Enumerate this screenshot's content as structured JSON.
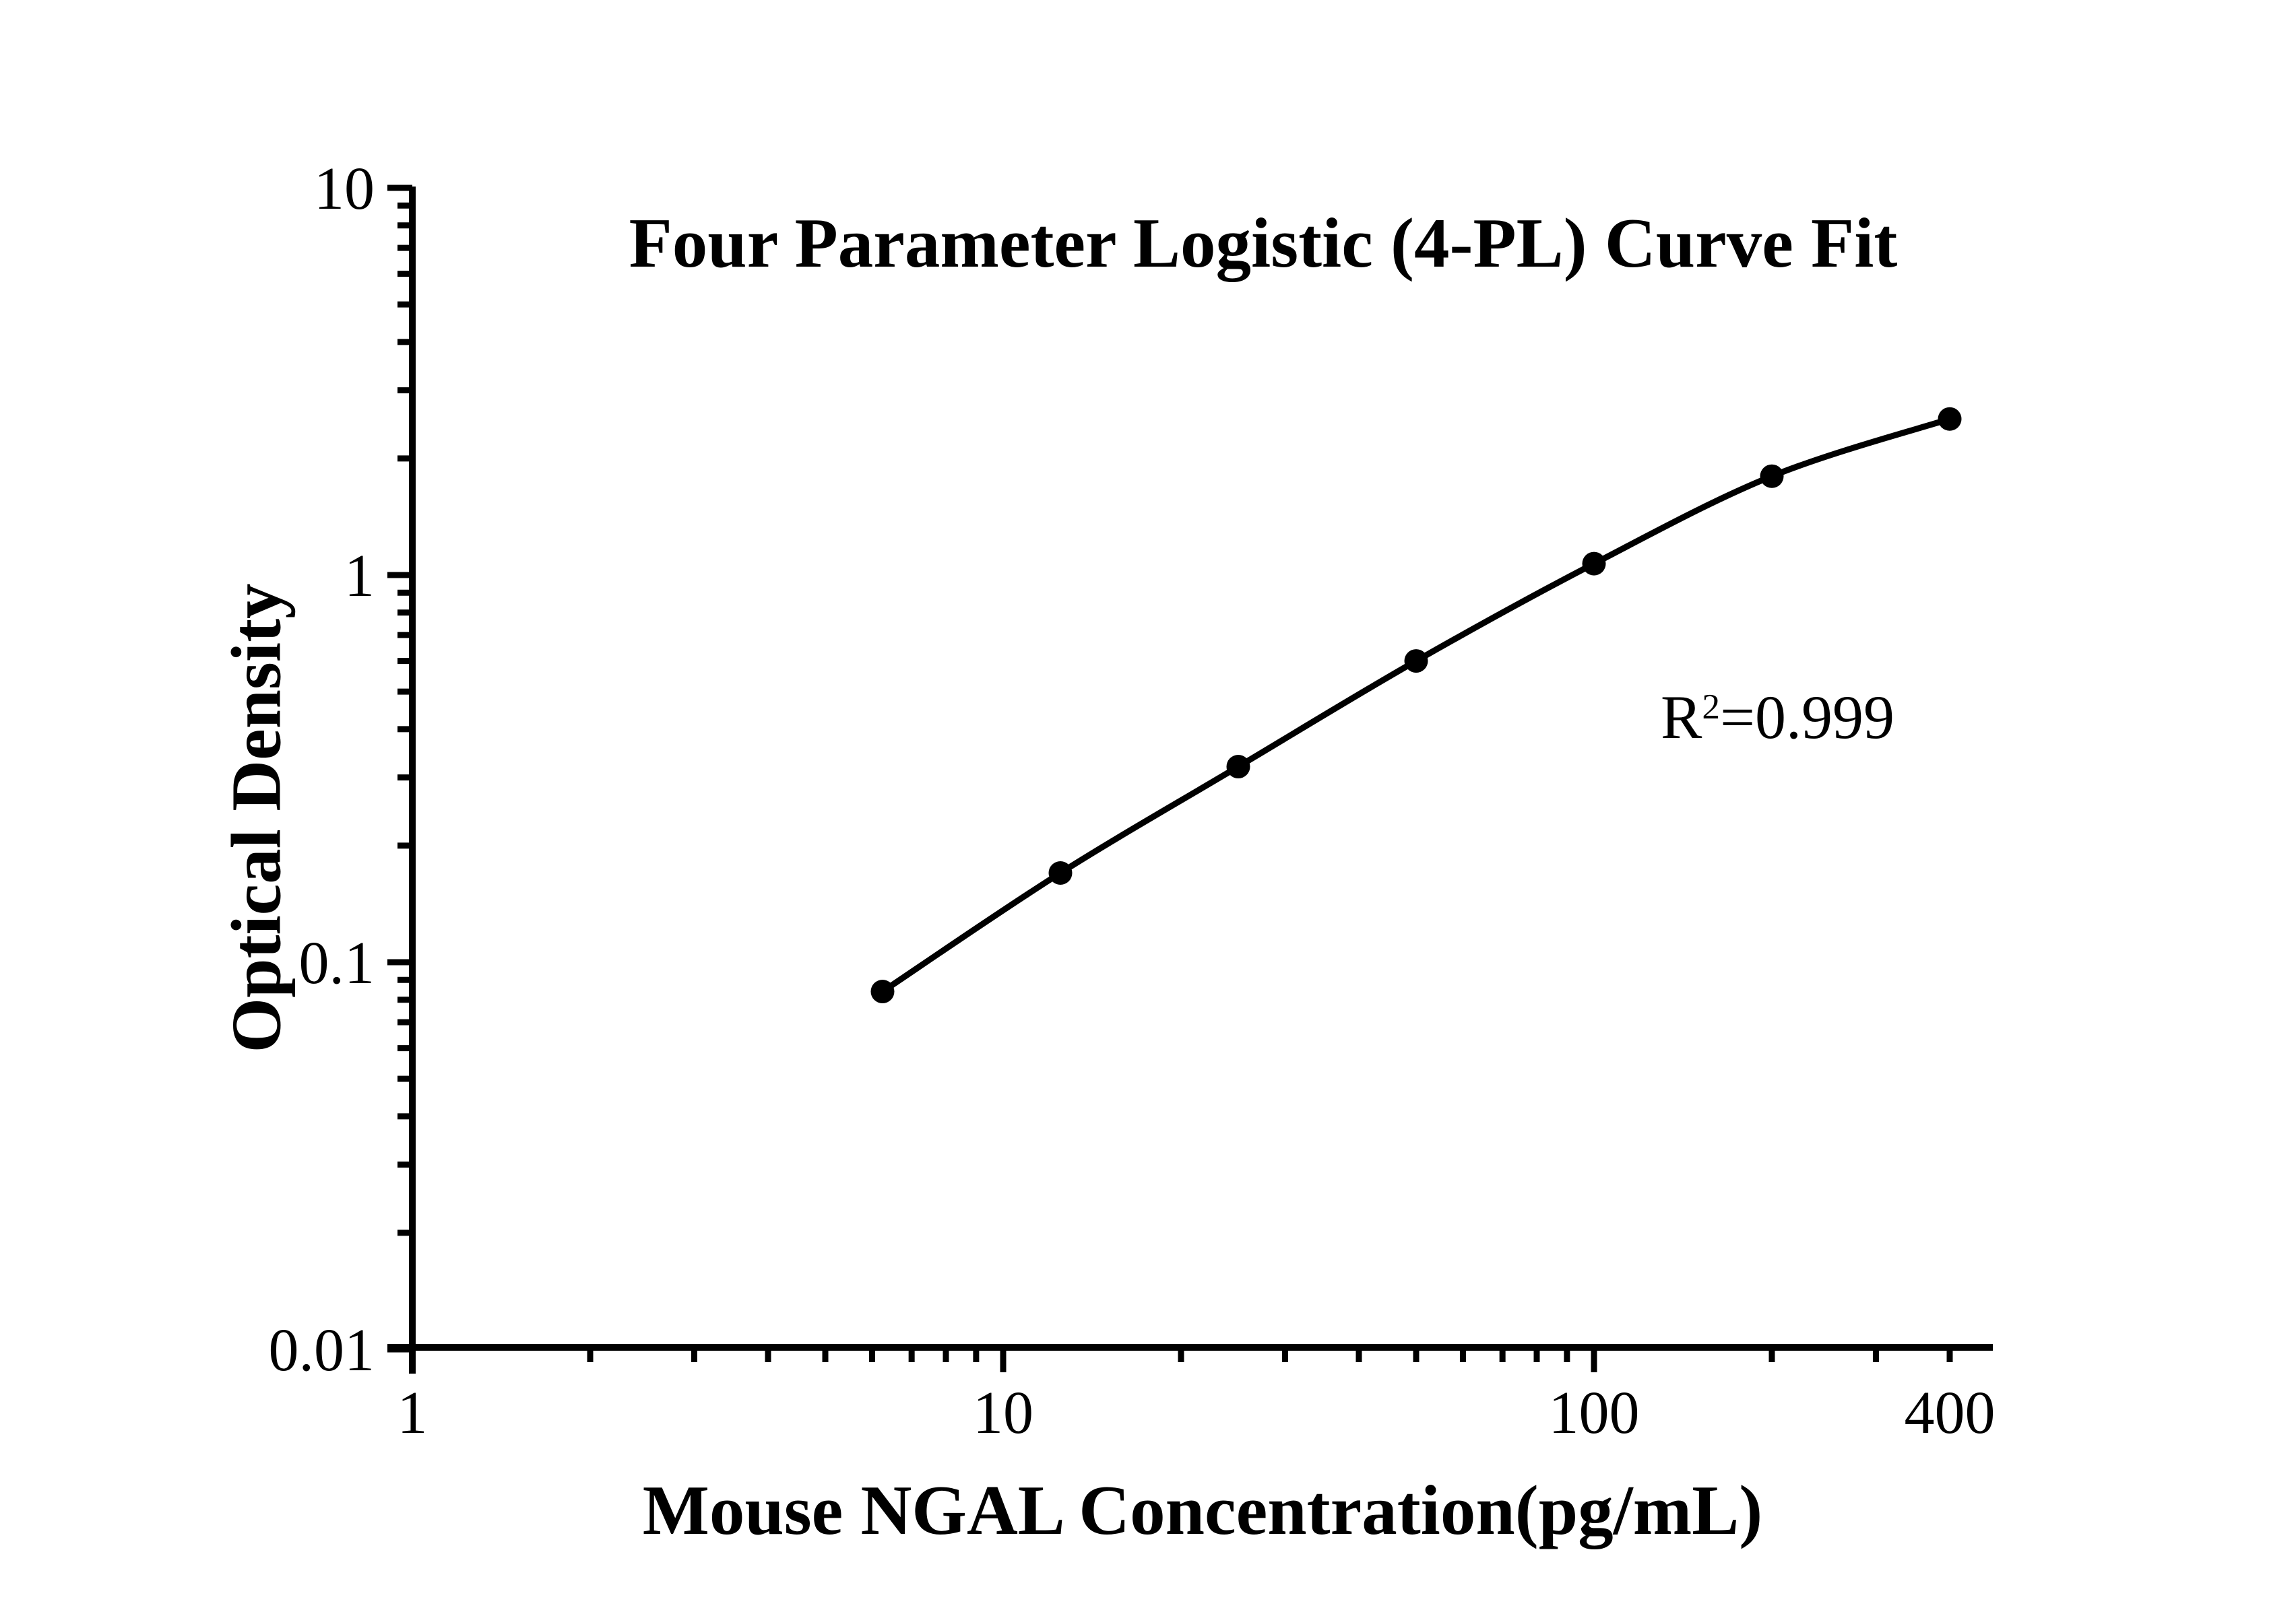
{
  "chart_data": {
    "type": "scatter",
    "title": "Four Parameter Logistic (4-PL) Curve Fit",
    "xlabel": "Mouse NGAL Concentration(pg/mL)",
    "ylabel": "Optical Density",
    "annotation": {
      "prefix": "R",
      "exponent": "2",
      "rest": "=0.999"
    },
    "x_scale": "log",
    "y_scale": "log",
    "xlim": [
      1,
      400
    ],
    "ylim": [
      0.01,
      10
    ],
    "grid": false,
    "x": [
      6.25,
      12.5,
      25,
      50,
      100,
      200,
      400
    ],
    "y": [
      0.084,
      0.17,
      0.32,
      0.6,
      1.07,
      1.8,
      2.53
    ],
    "x_ticks": [
      {
        "value": 1,
        "label": "1",
        "major": true
      },
      {
        "value": 10,
        "label": "10",
        "major": true
      },
      {
        "value": 100,
        "label": "100",
        "major": true
      },
      {
        "value": 400,
        "label": "400",
        "major": false
      }
    ],
    "y_ticks": [
      {
        "value": 10,
        "label": "10",
        "major": true
      },
      {
        "value": 1,
        "label": "1",
        "major": true
      },
      {
        "value": 0.1,
        "label": "0.1",
        "major": true
      },
      {
        "value": 0.01,
        "label": "0.01",
        "major": true
      }
    ],
    "colors": {
      "line": "#000000",
      "marker": "#000000",
      "axis": "#000000",
      "text": "#000000",
      "background": "#ffffff"
    }
  }
}
